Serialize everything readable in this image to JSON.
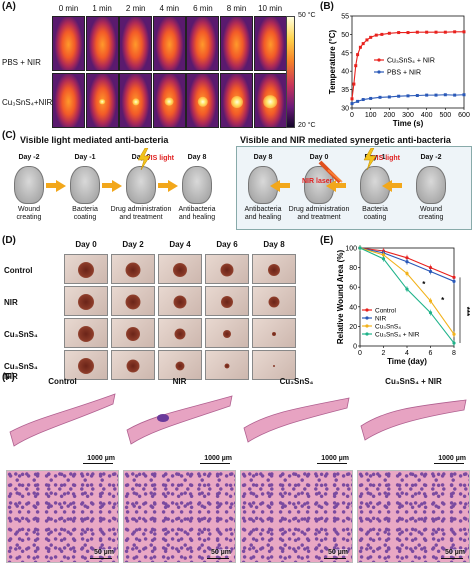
{
  "panel_a": {
    "label": "(A)",
    "times": [
      "0 min",
      "1 min",
      "2 min",
      "4 min",
      "6 min",
      "8 min",
      "10 min"
    ],
    "row_labels": [
      "PBS + NIR",
      "Cu₃SnS₄+NIR"
    ],
    "colorbar_max": "50 °C",
    "colorbar_min": "20 °C"
  },
  "panel_b": {
    "label": "(B)"
  },
  "panel_c": {
    "label": "(C)",
    "title_left": "Visible light mediated anti-bacteria",
    "title_right": "Visible and NIR mediated synergetic anti-bacteria",
    "left_days": [
      "Day -2",
      "Day -1",
      "Day 0",
      "Day 8"
    ],
    "right_days": [
      "Day 8",
      "Day 0",
      "Day -1",
      "Day -2"
    ],
    "left_steps": [
      "Wound\ncreating",
      "Bacteria\ncoating",
      "Drug administration\nand treatment",
      "Antibacteria\nand healing"
    ],
    "right_steps": [
      "Antibacteria\nand healing",
      "Drug administration\nand treatment",
      "Bacteria\ncoating",
      "Wound\ncreating"
    ],
    "vis_light": "VIS light",
    "nir_laser": "NIR laser"
  },
  "panel_d": {
    "label": "(D)",
    "days": [
      "Day 0",
      "Day 2",
      "Day 4",
      "Day 6",
      "Day 8"
    ],
    "groups": [
      "Control",
      "NIR",
      "Cu₃SnS₄",
      "Cu₃SnS₄\nNIR"
    ]
  },
  "panel_e": {
    "label": "(E)"
  },
  "panel_f": {
    "label": "(F)",
    "groups": [
      "Control",
      "NIR",
      "Cu₃SnS₄",
      "Cu₃SnS₄ + NIR"
    ],
    "scale_big": "1000 µm",
    "scale_small": "50 µm"
  },
  "chart_data": [
    {
      "type": "line",
      "panel": "B",
      "title": "",
      "xlabel": "Time (s)",
      "ylabel": "Temperature (°C)",
      "xlim": [
        0,
        600
      ],
      "ylim": [
        30,
        55
      ],
      "xticks": [
        0,
        100,
        200,
        300,
        400,
        500,
        600
      ],
      "yticks": [
        30,
        35,
        40,
        45,
        50,
        55
      ],
      "legend_position": "center-right",
      "series": [
        {
          "name": "Cu₃SnS₄ + NIR",
          "color": "#e8211d",
          "x": [
            0,
            10,
            20,
            30,
            45,
            60,
            80,
            100,
            130,
            160,
            200,
            250,
            300,
            350,
            400,
            450,
            500,
            550,
            600
          ],
          "y": [
            32.5,
            36.5,
            41.5,
            44.5,
            46.5,
            47.5,
            48.5,
            49.2,
            49.8,
            50.0,
            50.3,
            50.5,
            50.5,
            50.6,
            50.6,
            50.6,
            50.6,
            50.7,
            50.7
          ]
        },
        {
          "name": "PBS + NIR",
          "color": "#2a59b8",
          "x": [
            0,
            30,
            60,
            100,
            150,
            200,
            250,
            300,
            350,
            400,
            450,
            500,
            550,
            600
          ],
          "y": [
            31.2,
            31.8,
            32.3,
            32.6,
            32.9,
            33.0,
            33.2,
            33.3,
            33.4,
            33.5,
            33.5,
            33.6,
            33.5,
            33.6
          ]
        }
      ]
    },
    {
      "type": "line",
      "panel": "E",
      "title": "",
      "xlabel": "Time (day)",
      "ylabel": "Relative Wound Area (%)",
      "xlim": [
        0,
        8
      ],
      "ylim": [
        0,
        100
      ],
      "xticks": [
        0,
        2,
        4,
        6,
        8
      ],
      "yticks": [
        0,
        20,
        40,
        60,
        80,
        100
      ],
      "legend_position": "bottom-left",
      "annotations": [
        "*",
        "*",
        "***"
      ],
      "series": [
        {
          "name": "Control",
          "color": "#e8211d",
          "x": [
            0,
            2,
            4,
            6,
            8
          ],
          "y": [
            100,
            97,
            90,
            80,
            70
          ]
        },
        {
          "name": "NIR",
          "color": "#2a59b8",
          "x": [
            0,
            2,
            4,
            6,
            8
          ],
          "y": [
            100,
            95,
            86,
            76,
            66
          ]
        },
        {
          "name": "Cu₃SnS₄",
          "color": "#f2b21b",
          "x": [
            0,
            2,
            4,
            6,
            8
          ],
          "y": [
            100,
            93,
            74,
            46,
            12
          ]
        },
        {
          "name": "Cu₃SnS₄ + NIR",
          "color": "#1fb38a",
          "x": [
            0,
            2,
            4,
            6,
            8
          ],
          "y": [
            100,
            89,
            58,
            34,
            3
          ]
        }
      ]
    }
  ]
}
